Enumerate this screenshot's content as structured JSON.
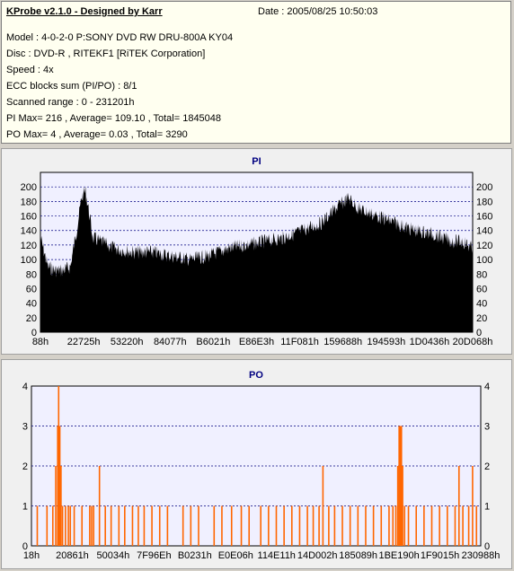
{
  "header": {
    "title": "KProbe v2.1.0 - Designed by Karr",
    "date": "Date : 2005/08/25 10:50:03",
    "lines": [
      "Model : 4-0-2-0 P:SONY    DVD RW DRU-800A  KY04",
      "Disc : DVD-R , RITEKF1 [RiTEK Corporation]",
      "Speed : 4x",
      "ECC blocks sum (PI/PO) : 8/1",
      "Scanned range : 0 - 231201h",
      "PI Max= 216 , Average= 109.10 , Total= 1845048",
      "PO Max= 4 , Average= 0.03 , Total= 3290"
    ]
  },
  "colors": {
    "pi_fill": "#000000",
    "po_bar": "#ff6600",
    "plot_bg": "#f0f0ff",
    "title_blue": "#000080",
    "grid": "#000080"
  },
  "chart_data": [
    {
      "type": "area",
      "title": "PI",
      "x_tick_labels": [
        "88h",
        "22725h",
        "53220h",
        "84077h",
        "B6021h",
        "E86E3h",
        "11F081h",
        "159688h",
        "194593h",
        "1D0436h",
        "20D068h"
      ],
      "y_ticks": [
        0,
        20,
        40,
        60,
        80,
        100,
        120,
        140,
        160,
        180,
        200
      ],
      "ylim": [
        0,
        220
      ],
      "xlim": [
        0,
        231201
      ],
      "grid": true,
      "series": [
        {
          "x": [
            0,
            4000,
            8000,
            12000,
            16000,
            20000,
            22000,
            24000,
            26000,
            28000,
            32000,
            40000,
            50000,
            60000,
            70000,
            80000,
            90000,
            100000,
            110000,
            120000,
            130000,
            140000,
            150000,
            160000,
            165000,
            170000,
            175000,
            180000,
            190000,
            200000,
            210000,
            220000,
            226000,
            231201
          ],
          "values": [
            140,
            100,
            95,
            95,
            100,
            160,
            195,
            205,
            175,
            140,
            135,
            125,
            120,
            120,
            115,
            110,
            115,
            125,
            130,
            135,
            140,
            150,
            160,
            185,
            195,
            180,
            175,
            170,
            160,
            150,
            145,
            135,
            135,
            125
          ]
        }
      ]
    },
    {
      "type": "bar",
      "title": "PO",
      "x_tick_labels": [
        "18h",
        "20861h",
        "50034h",
        "7F96Eh",
        "B0231h",
        "E0E06h",
        "114E11h",
        "14D002h",
        "185089h",
        "1BE190h",
        "1F9015h",
        "230988h"
      ],
      "y_ticks": [
        0,
        1,
        2,
        3,
        4
      ],
      "ylim": [
        0,
        4
      ],
      "xlim": [
        0,
        231201
      ],
      "grid": true,
      "spikes": [
        {
          "x": 3000,
          "v": 1
        },
        {
          "x": 8000,
          "v": 1
        },
        {
          "x": 11000,
          "v": 1
        },
        {
          "x": 12500,
          "v": 2
        },
        {
          "x": 13500,
          "v": 3
        },
        {
          "x": 14000,
          "v": 4
        },
        {
          "x": 14600,
          "v": 3
        },
        {
          "x": 15200,
          "v": 2
        },
        {
          "x": 16000,
          "v": 1
        },
        {
          "x": 17500,
          "v": 1
        },
        {
          "x": 19000,
          "v": 1
        },
        {
          "x": 20000,
          "v": 1
        },
        {
          "x": 22000,
          "v": 1
        },
        {
          "x": 26000,
          "v": 1
        },
        {
          "x": 30000,
          "v": 1
        },
        {
          "x": 31000,
          "v": 1
        },
        {
          "x": 32000,
          "v": 1
        },
        {
          "x": 35000,
          "v": 2
        },
        {
          "x": 38000,
          "v": 1
        },
        {
          "x": 41000,
          "v": 1
        },
        {
          "x": 45000,
          "v": 1
        },
        {
          "x": 48000,
          "v": 1
        },
        {
          "x": 52000,
          "v": 1
        },
        {
          "x": 55000,
          "v": 1
        },
        {
          "x": 58000,
          "v": 1
        },
        {
          "x": 62000,
          "v": 1
        },
        {
          "x": 66000,
          "v": 1
        },
        {
          "x": 70000,
          "v": 1
        },
        {
          "x": 78000,
          "v": 1
        },
        {
          "x": 82000,
          "v": 1
        },
        {
          "x": 86000,
          "v": 1
        },
        {
          "x": 94000,
          "v": 1
        },
        {
          "x": 98000,
          "v": 1
        },
        {
          "x": 103000,
          "v": 1
        },
        {
          "x": 108000,
          "v": 1
        },
        {
          "x": 112000,
          "v": 1
        },
        {
          "x": 118000,
          "v": 1
        },
        {
          "x": 122000,
          "v": 1
        },
        {
          "x": 126000,
          "v": 1
        },
        {
          "x": 130000,
          "v": 1
        },
        {
          "x": 134000,
          "v": 1
        },
        {
          "x": 138000,
          "v": 1
        },
        {
          "x": 142000,
          "v": 1
        },
        {
          "x": 145000,
          "v": 1
        },
        {
          "x": 148000,
          "v": 1
        },
        {
          "x": 150000,
          "v": 2
        },
        {
          "x": 153000,
          "v": 1
        },
        {
          "x": 156000,
          "v": 1
        },
        {
          "x": 160000,
          "v": 1
        },
        {
          "x": 164000,
          "v": 1
        },
        {
          "x": 168000,
          "v": 1
        },
        {
          "x": 172000,
          "v": 1
        },
        {
          "x": 176000,
          "v": 1
        },
        {
          "x": 180000,
          "v": 1
        },
        {
          "x": 184000,
          "v": 1
        },
        {
          "x": 186000,
          "v": 1
        },
        {
          "x": 187500,
          "v": 1
        },
        {
          "x": 188500,
          "v": 2
        },
        {
          "x": 189200,
          "v": 3
        },
        {
          "x": 189800,
          "v": 3
        },
        {
          "x": 190400,
          "v": 3
        },
        {
          "x": 191000,
          "v": 2
        },
        {
          "x": 192000,
          "v": 1
        },
        {
          "x": 194000,
          "v": 1
        },
        {
          "x": 198000,
          "v": 1
        },
        {
          "x": 202000,
          "v": 1
        },
        {
          "x": 206000,
          "v": 1
        },
        {
          "x": 210000,
          "v": 1
        },
        {
          "x": 214000,
          "v": 1
        },
        {
          "x": 218000,
          "v": 1
        },
        {
          "x": 220000,
          "v": 2
        },
        {
          "x": 222000,
          "v": 1
        },
        {
          "x": 225000,
          "v": 1
        },
        {
          "x": 227000,
          "v": 2
        },
        {
          "x": 229000,
          "v": 1
        }
      ]
    }
  ]
}
